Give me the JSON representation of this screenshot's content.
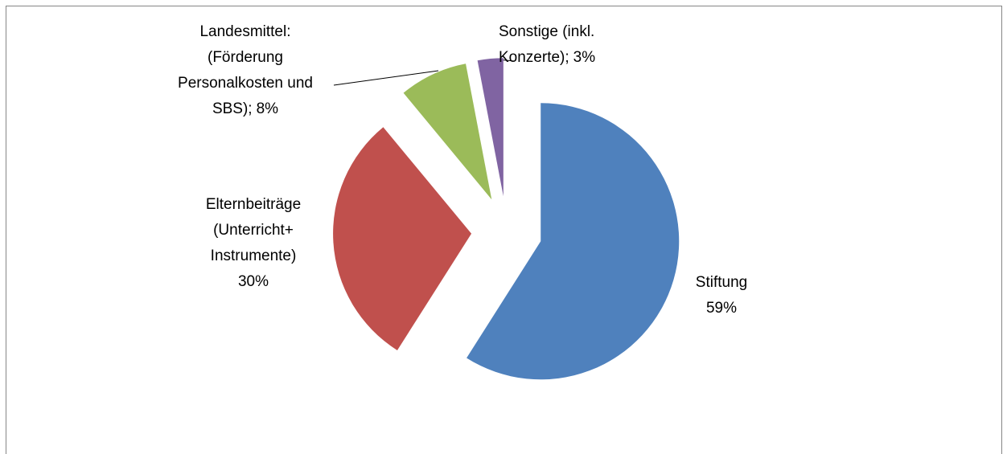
{
  "chart_data": {
    "type": "pie",
    "categories": [
      "Stiftung",
      "Elternbeiträge\n(Unterricht+\nInstrumente)",
      "Landesmittel:\n(Förderung\nPersonalkosten und\nSBS);",
      "Sonstige (inkl.\nKonzerte);"
    ],
    "values": [
      59,
      30,
      8,
      3
    ],
    "value_labels": [
      "59%",
      "30%",
      "8%",
      "3%"
    ],
    "colors": [
      "#4f81bd",
      "#c0504d",
      "#9bbb59",
      "#8064a2"
    ]
  }
}
